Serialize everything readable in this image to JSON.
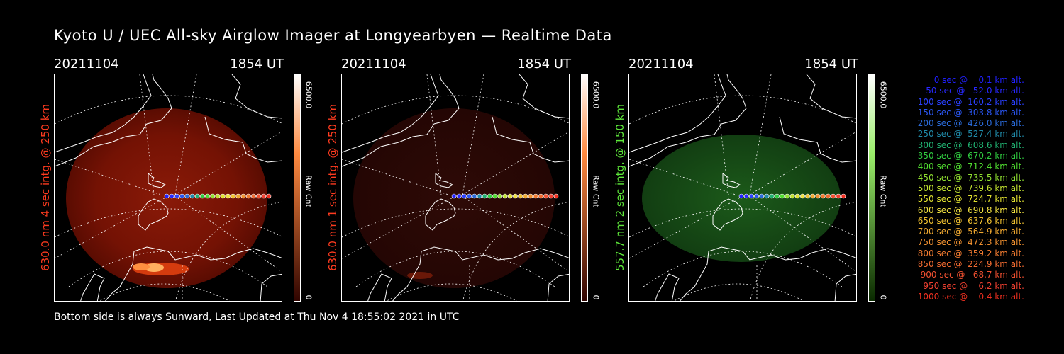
{
  "title": "Kyoto U / UEC All-sky Airglow Imager at Longyearbyen — Realtime Data",
  "colors": {
    "red": "#ff3b1f",
    "green": "#5ee83a",
    "white": "#ffffff"
  },
  "panels": [
    {
      "date": "20211104",
      "time": "1854 UT",
      "label": "630.0 nm 4 sec intg. @ 250 km",
      "label_color": "#ff3b1f",
      "cbar_max": "6500.0",
      "cbar_unit": "Raw Cnt",
      "cbar_min": "0",
      "scheme": "red",
      "glow": "bright"
    },
    {
      "date": "20211104",
      "time": "1854 UT",
      "label": "630.0 nm 1 sec intg. @ 250 km",
      "label_color": "#ff3b1f",
      "cbar_max": "6500.0",
      "cbar_unit": "Raw Cnt",
      "cbar_min": "0",
      "scheme": "red",
      "glow": "dim"
    },
    {
      "date": "20211104",
      "time": "1854 UT",
      "label": "557.7 nm 2 sec intg. @ 150 km",
      "label_color": "#5ee83a",
      "cbar_max": "6500.0",
      "cbar_unit": "Raw Cnt",
      "cbar_min": "0",
      "scheme": "green",
      "glow": "green"
    }
  ],
  "legend": [
    {
      "text": "0 sec @    0.1 km alt.",
      "color": "#2020ff"
    },
    {
      "text": "50 sec @   52.0 km alt.",
      "color": "#2828ff"
    },
    {
      "text": "100 sec @  160.2 km alt.",
      "color": "#2a40ff"
    },
    {
      "text": "150 sec @  303.8 km alt.",
      "color": "#2a55f0"
    },
    {
      "text": "200 sec @  426.0 km alt.",
      "color": "#2a6ad8"
    },
    {
      "text": "250 sec @  527.4 km alt.",
      "color": "#208aa8"
    },
    {
      "text": "300 sec @  608.6 km alt.",
      "color": "#20b070"
    },
    {
      "text": "350 sec @  670.2 km alt.",
      "color": "#30cc40"
    },
    {
      "text": "400 sec @  712.4 km alt.",
      "color": "#50dd30"
    },
    {
      "text": "450 sec @  735.5 km alt.",
      "color": "#90e030"
    },
    {
      "text": "500 sec @  739.6 km alt.",
      "color": "#c0e030"
    },
    {
      "text": "550 sec @  724.7 km alt.",
      "color": "#e0e030"
    },
    {
      "text": "600 sec @  690.8 km alt.",
      "color": "#f0e040"
    },
    {
      "text": "650 sec @  637.6 km alt.",
      "color": "#f0c030"
    },
    {
      "text": "700 sec @  564.9 km alt.",
      "color": "#f0a830"
    },
    {
      "text": "750 sec @  472.3 km alt.",
      "color": "#f09030"
    },
    {
      "text": "800 sec @  359.2 km alt.",
      "color": "#f07a30"
    },
    {
      "text": "850 sec @  224.9 km alt.",
      "color": "#f06a30"
    },
    {
      "text": "900 sec @   68.7 km alt.",
      "color": "#f05030"
    },
    {
      "text": "950 sec @    6.2 km alt.",
      "color": "#f04030"
    },
    {
      "text": "1000 sec @    0.4 km alt.",
      "color": "#f03020"
    }
  ],
  "footer": "Bottom side is always Sunward, Last Updated at Thu Nov  4 18:55:02 2021 in UTC"
}
